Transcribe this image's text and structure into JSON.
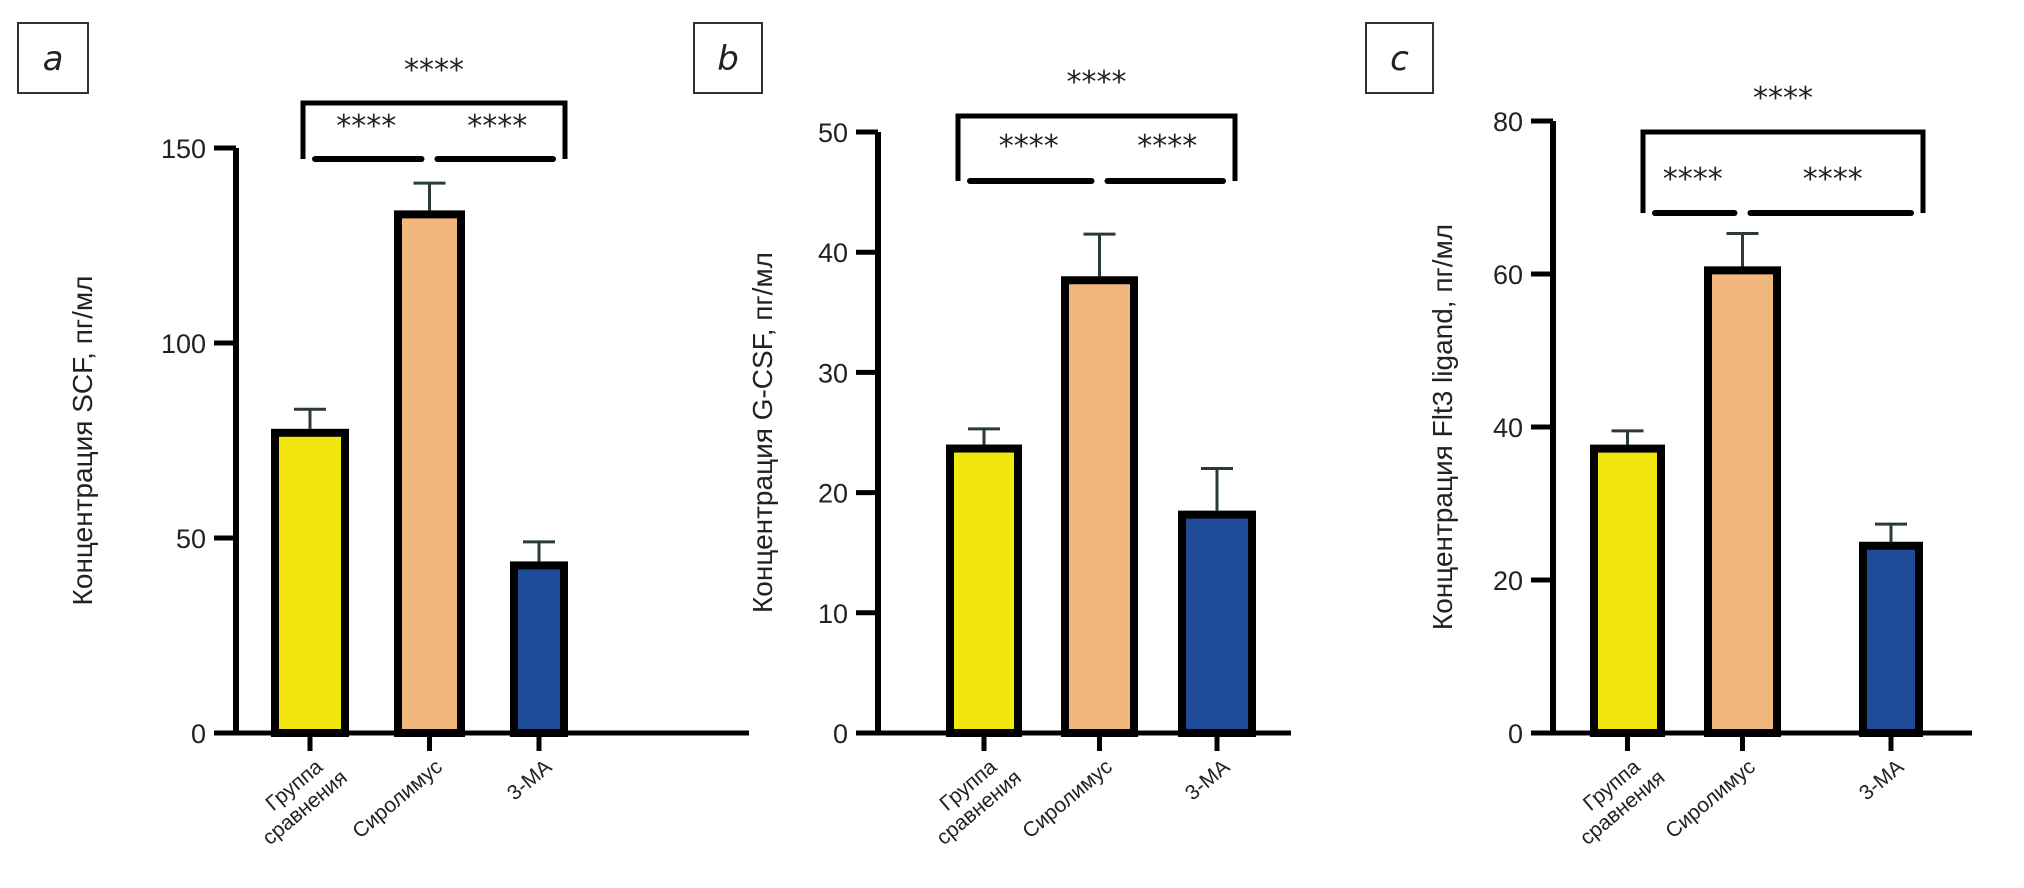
{
  "chart_data": [
    {
      "type": "bar",
      "panel_label": "a",
      "ylabel": "Концентрация SCF, пг/мл",
      "categories": [
        [
          "Группа",
          "сравнения"
        ],
        [
          "Сиролимус"
        ],
        [
          "3-МА"
        ]
      ],
      "values": [
        78,
        134,
        44
      ],
      "error_upper": [
        83,
        141,
        49
      ],
      "colors": [
        "#f2e60e",
        "#f2b77c",
        "#1f4a98"
      ],
      "ylim": [
        0,
        150
      ],
      "yticks": [
        0,
        50,
        100,
        150
      ],
      "grid": false,
      "significance": {
        "overall": "****",
        "pair_1_2": "****",
        "pair_2_3": "****"
      }
    },
    {
      "type": "bar",
      "panel_label": "b",
      "ylabel": "Концентрация G-CSF, пг/мл",
      "categories": [
        [
          "Группа",
          "сравнения"
        ],
        [
          "Сиролимус"
        ],
        [
          "3-МА"
        ]
      ],
      "values": [
        24,
        38,
        18.5
      ],
      "error_upper": [
        25.3,
        41.5,
        22
      ],
      "colors": [
        "#f2e60e",
        "#f2b77c",
        "#1f4a98"
      ],
      "ylim": [
        0,
        50
      ],
      "yticks": [
        0,
        10,
        20,
        30,
        40,
        50
      ],
      "grid": false,
      "significance": {
        "overall": "****",
        "pair_1_2": "****",
        "pair_2_3": "****"
      }
    },
    {
      "type": "bar",
      "panel_label": "c",
      "ylabel": "Концентрация Flt3 ligand, пг/мл",
      "categories": [
        [
          "Группа",
          "сравнения"
        ],
        [
          "Сиролимус"
        ],
        [
          "3-МА"
        ]
      ],
      "values": [
        37.7,
        61,
        25
      ],
      "error_upper": [
        39.5,
        65.3,
        27.3
      ],
      "colors": [
        "#f2e60e",
        "#f2b77c",
        "#1f4a98"
      ],
      "ylim": [
        0,
        80
      ],
      "yticks": [
        0,
        20,
        40,
        60,
        80
      ],
      "grid": false,
      "significance": {
        "overall": "****",
        "pair_1_2": "****",
        "pair_2_3": "****"
      }
    }
  ]
}
